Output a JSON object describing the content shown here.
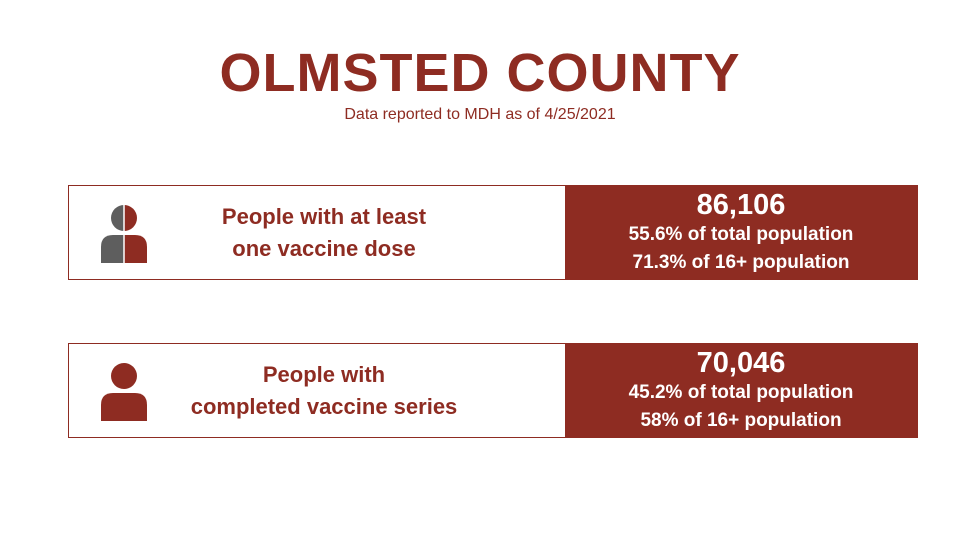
{
  "header": {
    "title": "OLMSTED COUNTY",
    "subtitle": "Data reported to MDH as of 4/25/2021"
  },
  "cards": [
    {
      "icon": "person-half-icon",
      "label_line1": "People with at least",
      "label_line2": "one vaccine dose",
      "count": "86,106",
      "stat_total": "55.6% of total population",
      "stat_16plus": "71.3% of 16+ population"
    },
    {
      "icon": "person-full-icon",
      "label_line1": "People with",
      "label_line2": "completed vaccine series",
      "count": "70,046",
      "stat_total": "45.2% of total population",
      "stat_16plus": "58% of 16+ population"
    }
  ],
  "colors": {
    "brand": "#8e2c22",
    "icon_gray": "#5e5e5e",
    "background": "#ffffff"
  }
}
